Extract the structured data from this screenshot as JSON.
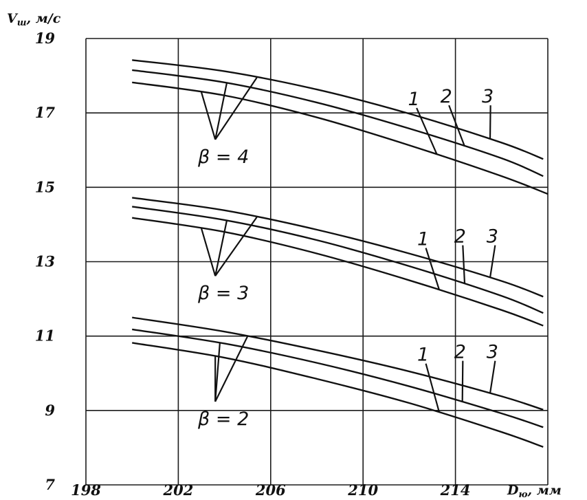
{
  "chart_data": {
    "type": "line",
    "ylabel": "V",
    "ylabel_sub": "ш",
    "ylabel_unit": ", м/с",
    "xlabel": "D",
    "xlabel_sub": "ю",
    "xlabel_unit": ", мм",
    "xlim": [
      198,
      218
    ],
    "ylim": [
      7,
      19
    ],
    "x_ticks": [
      198,
      202,
      206,
      210,
      214
    ],
    "y_ticks": [
      7,
      9,
      11,
      13,
      15,
      17,
      19
    ],
    "grid": true,
    "groups": [
      {
        "label": "β = 4",
        "series": [
          {
            "name": "1",
            "x": [
              200,
              204,
              208,
              212,
              216,
              218
            ],
            "y": [
              17.82,
              17.47,
              16.88,
              16.13,
              15.3,
              14.82
            ]
          },
          {
            "name": "2",
            "x": [
              200,
              204,
              208,
              212,
              216,
              217.8
            ],
            "y": [
              18.15,
              17.82,
              17.28,
              16.58,
              15.78,
              15.3
            ]
          },
          {
            "name": "3",
            "x": [
              200,
              204,
              208,
              212,
              216,
              217.8
            ],
            "y": [
              18.42,
              18.12,
              17.63,
              16.98,
              16.2,
              15.76
            ]
          }
        ]
      },
      {
        "label": "β = 3",
        "series": [
          {
            "name": "1",
            "x": [
              200,
              204,
              208,
              212,
              216,
              217.8
            ],
            "y": [
              14.18,
              13.8,
              13.22,
              12.5,
              11.7,
              11.28
            ]
          },
          {
            "name": "2",
            "x": [
              200,
              204,
              208,
              212,
              216,
              217.8
            ],
            "y": [
              14.48,
              14.12,
              13.58,
              12.88,
              12.08,
              11.62
            ]
          },
          {
            "name": "3",
            "x": [
              200,
              204,
              208,
              212,
              216,
              217.8
            ],
            "y": [
              14.72,
              14.38,
              13.86,
              13.22,
              12.48,
              12.06
            ]
          }
        ]
      },
      {
        "label": "β = 2",
        "series": [
          {
            "name": "1",
            "x": [
              200,
              204,
              208,
              212,
              216,
              217.8
            ],
            "y": [
              10.82,
              10.42,
              9.85,
              9.2,
              8.42,
              8.02
            ]
          },
          {
            "name": "2",
            "x": [
              200,
              204,
              208,
              212,
              216,
              217.8
            ],
            "y": [
              11.18,
              10.8,
              10.28,
              9.65,
              8.92,
              8.55
            ]
          },
          {
            "name": "3",
            "x": [
              200,
              204,
              208,
              212,
              216,
              217.8
            ],
            "y": [
              11.5,
              11.12,
              10.62,
              10.05,
              9.38,
              9.02
            ]
          }
        ]
      }
    ]
  }
}
